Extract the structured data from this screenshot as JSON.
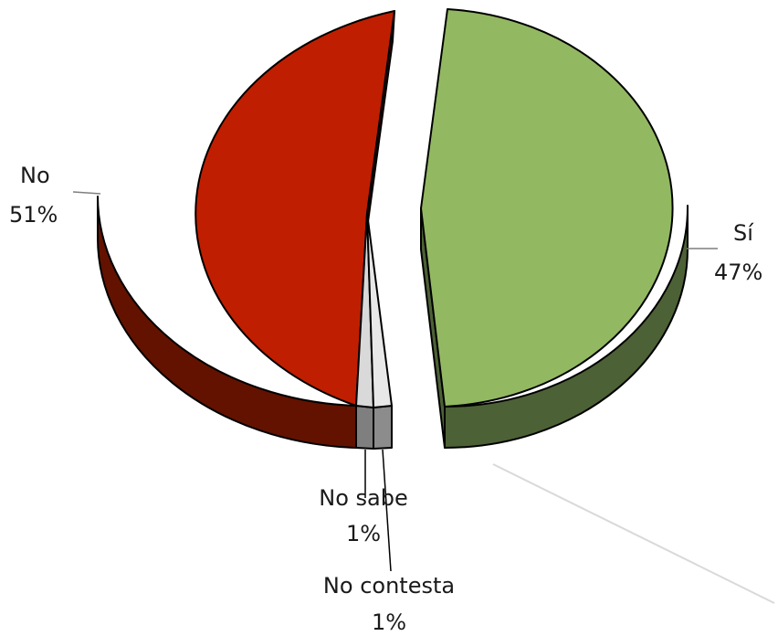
{
  "chart_data": {
    "type": "pie",
    "style": "3d-exploded",
    "title": "",
    "slices": [
      {
        "label": "Sí",
        "value": 47,
        "display": "47%",
        "color": "#93B862",
        "side_color": "#4C6135"
      },
      {
        "label": "No",
        "value": 51,
        "display": "51%",
        "color": "#C01E00",
        "side_color": "#631200"
      },
      {
        "label": "No sabe",
        "value": 1,
        "display": "1%",
        "color": "#D9D9D9",
        "side_color": "#7F7F7F"
      },
      {
        "label": "No contesta",
        "value": 1,
        "display": "1%",
        "color": "#E8E8E8",
        "side_color": "#8C8C8C"
      }
    ],
    "legend": "none"
  }
}
